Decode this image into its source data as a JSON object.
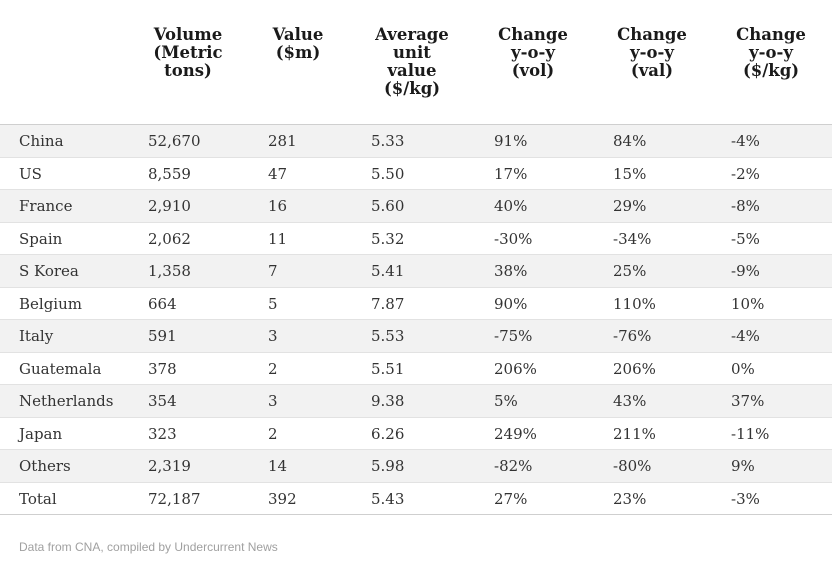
{
  "header": {
    "columns": [
      "",
      "Volume\n(Metric\ntons)",
      "Value\n($m)",
      "Average\nunit\nvalue\n($/kg)",
      "Change\ny-o-y\n(vol)",
      "Change\ny-o-y\n(val)",
      "Change\ny-o-y\n($/kg)"
    ]
  },
  "rows": [
    [
      "China",
      "52,670",
      "281",
      "5.33",
      "91%",
      "84%",
      "-4%"
    ],
    [
      "US",
      "8,559",
      "47",
      "5.50",
      "17%",
      "15%",
      "-2%"
    ],
    [
      "France",
      "2,910",
      "16",
      "5.60",
      "40%",
      "29%",
      "-8%"
    ],
    [
      "Spain",
      "2,062",
      "11",
      "5.32",
      "-30%",
      "-34%",
      "-5%"
    ],
    [
      "S Korea",
      "1,358",
      "7",
      "5.41",
      "38%",
      "25%",
      "-9%"
    ],
    [
      "Belgium",
      "664",
      "5",
      "7.87",
      "90%",
      "110%",
      "10%"
    ],
    [
      "Italy",
      "591",
      "3",
      "5.53",
      "-75%",
      "-76%",
      "-4%"
    ],
    [
      "Guatemala",
      "378",
      "2",
      "5.51",
      "206%",
      "206%",
      "0%"
    ],
    [
      "Netherlands",
      "354",
      "3",
      "9.38",
      "5%",
      "43%",
      "37%"
    ],
    [
      "Japan",
      "323",
      "2",
      "6.26",
      "249%",
      "211%",
      "-11%"
    ],
    [
      "Others",
      "2,319",
      "14",
      "5.98",
      "-82%",
      "-80%",
      "9%"
    ],
    [
      "Total",
      "72,187",
      "392",
      "5.43",
      "27%",
      "23%",
      "-3%"
    ]
  ],
  "footer": {
    "source": "Data from CNA, compiled by Undercurrent News"
  }
}
